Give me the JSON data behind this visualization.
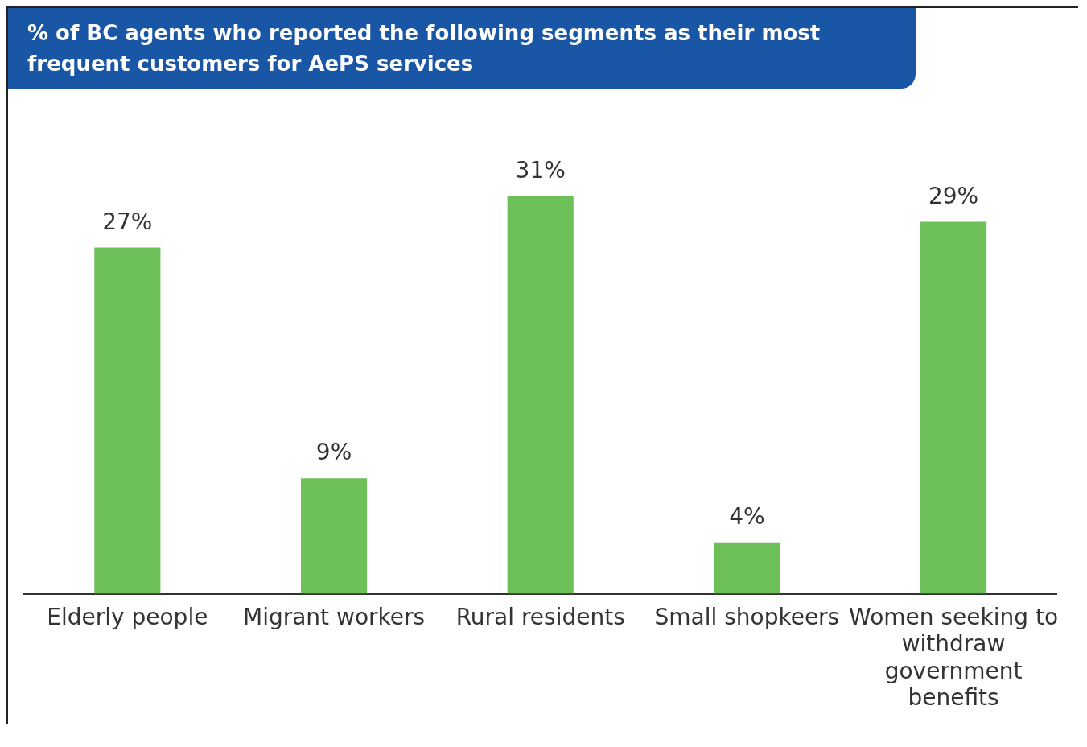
{
  "chart_data": {
    "type": "bar",
    "title": "% of BC agents who reported the following segments as their most frequent customers for AePS services",
    "categories": [
      "Elderly people",
      "Migrant workers",
      "Rural residents",
      "Small shopkeers",
      "Women seeking to withdraw government benefits"
    ],
    "values": [
      27,
      9,
      31,
      4,
      29
    ],
    "value_labels": [
      "27%",
      "9%",
      "31%",
      "4%",
      "29%"
    ],
    "color": "#6dbf58",
    "grid": false,
    "legend": false
  }
}
